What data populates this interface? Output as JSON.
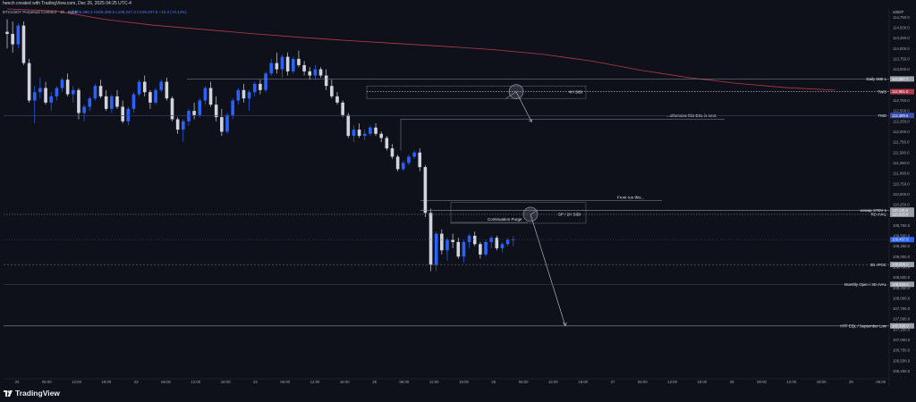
{
  "header": {
    "created_text": "heech created with TradingView.com, Dec 26, 2025 04:25 UTC-4",
    "symbol_text": "BTCUSDT Perpetual Contract · 1h · Bybit",
    "ohlc_text": "O109,396.3  H109,486.5  L109,247.3  C109,407.8  +10.3 (+0.14%)"
  },
  "brand": {
    "name": "TradingView"
  },
  "currency": "USDT",
  "colors": {
    "bg": "#0e1119",
    "up": "#2962ff",
    "down": "#d1d4dc",
    "vwap": "#b73a4a",
    "line": "#8a8f9a"
  },
  "price_axis": {
    "ticks": [
      "114,750.0",
      "114,500.0",
      "114,250.0",
      "114,000.0",
      "113,750.0",
      "113,500.0",
      "113,250.0",
      "113,000.0",
      "112,750.0",
      "112,500.0",
      "112,250.0",
      "112,000.0",
      "111,750.0",
      "111,500.0",
      "111,250.0",
      "111,000.0",
      "110,750.0",
      "110,500.0",
      "110,250.0",
      "110,000.0",
      "109,750.0",
      "109,500.0",
      "109,250.0",
      "109,000.0",
      "108,750.0",
      "108,500.0",
      "108,250.0",
      "108,000.0",
      "107,750.0",
      "107,500.0",
      "107,250.0",
      "107,000.0",
      "106,750.0",
      "106,500.0",
      "106,250.0"
    ]
  },
  "time_axis": {
    "ticks": [
      "22",
      "06:00",
      "12:00",
      "18:00",
      "23",
      "06:00",
      "12:00",
      "18:00",
      "24",
      "06:00",
      "12:00",
      "18:00",
      "25",
      "06:00",
      "12:00",
      "18:00",
      "26",
      "06:00",
      "12:00",
      "18:00",
      "27",
      "06:00",
      "12:00",
      "18:00",
      "28",
      "06:00",
      "12:00",
      "18:00",
      "29",
      "06:00"
    ]
  },
  "levels": [
    {
      "label": "Daily SIBI L",
      "price": "113,267.7"
    },
    {
      "label": "TWO",
      "price": "112,961.0"
    },
    {
      "label": "TMO",
      "price": "112,389.6"
    },
    {
      "label": "wvwap STDV 1",
      "price": "110,115.0"
    },
    {
      "label": "RD cVAL",
      "price": "110,015.0"
    },
    {
      "label": "",
      "price": "109,407.8"
    },
    {
      "label": "3D cPOC",
      "price": "108,808.0"
    },
    {
      "label": "Monthly Open / 3D cVAL",
      "price": "108,333.0"
    },
    {
      "label": "HTF EQL / September Low",
      "price": "107,335.0"
    }
  ],
  "annotations": [
    {
      "text": "4H SIBI"
    },
    {
      "text": "...otherwise this BSL is next."
    },
    {
      "text": "Front run this..."
    },
    {
      "text": "SP / 2H SIBI"
    },
    {
      "text": "Continuation Purge"
    }
  ],
  "chart_data": {
    "type": "candlestick",
    "ylim": [
      106150,
      114950
    ],
    "candles": [
      [
        114400,
        114700,
        114000,
        114350
      ],
      [
        114350,
        114650,
        113900,
        114100
      ],
      [
        114100,
        114600,
        114000,
        114550
      ],
      [
        114550,
        114650,
        113600,
        113650
      ],
      [
        113650,
        113750,
        112700,
        112750
      ],
      [
        112750,
        113100,
        112200,
        112950
      ],
      [
        112950,
        113300,
        112800,
        113050
      ],
      [
        113050,
        113200,
        112650,
        112700
      ],
      [
        112700,
        112950,
        112500,
        112850
      ],
      [
        112850,
        113100,
        112750,
        113050
      ],
      [
        113050,
        113300,
        112950,
        113250
      ],
      [
        113250,
        113400,
        112850,
        112900
      ],
      [
        112900,
        113100,
        112700,
        113000
      ],
      [
        113000,
        113050,
        112300,
        112450
      ],
      [
        112450,
        112650,
        112250,
        112600
      ],
      [
        112600,
        112850,
        112500,
        112800
      ],
      [
        112800,
        113150,
        112750,
        113100
      ],
      [
        113100,
        113250,
        112800,
        112850
      ],
      [
        112850,
        113000,
        112500,
        112550
      ],
      [
        112550,
        112900,
        112450,
        112850
      ],
      [
        112850,
        113000,
        112550,
        112600
      ],
      [
        112600,
        112750,
        112200,
        112250
      ],
      [
        112250,
        112600,
        112150,
        112550
      ],
      [
        112550,
        112950,
        112450,
        112900
      ],
      [
        112900,
        113250,
        112850,
        113200
      ],
      [
        113200,
        113350,
        112850,
        112950
      ],
      [
        112950,
        113000,
        112550,
        112700
      ],
      [
        112700,
        113050,
        112650,
        113000
      ],
      [
        113000,
        113250,
        112950,
        113200
      ],
      [
        113200,
        113300,
        112750,
        112800
      ],
      [
        112800,
        112850,
        112250,
        112300
      ],
      [
        112300,
        112350,
        111950,
        112050
      ],
      [
        112050,
        112300,
        111750,
        112250
      ],
      [
        112250,
        112550,
        112150,
        112500
      ],
      [
        112500,
        112700,
        112300,
        112400
      ],
      [
        112400,
        112800,
        112350,
        112750
      ],
      [
        112750,
        113100,
        112650,
        113050
      ],
      [
        113050,
        113200,
        112600,
        112650
      ],
      [
        112650,
        112850,
        112250,
        112350
      ],
      [
        112350,
        112550,
        111900,
        112000
      ],
      [
        112000,
        112450,
        111950,
        112400
      ],
      [
        112400,
        112800,
        112300,
        112750
      ],
      [
        112750,
        113050,
        112650,
        113000
      ],
      [
        113000,
        113150,
        112700,
        112800
      ],
      [
        112800,
        113000,
        112500,
        112950
      ],
      [
        112950,
        113200,
        112850,
        113150
      ],
      [
        113150,
        113250,
        112900,
        113000
      ],
      [
        113000,
        113450,
        112950,
        113400
      ],
      [
        113400,
        113750,
        113350,
        113650
      ],
      [
        113650,
        113900,
        113400,
        113500
      ],
      [
        113500,
        113850,
        113300,
        113800
      ],
      [
        113800,
        113900,
        113350,
        113450
      ],
      [
        113450,
        113800,
        113400,
        113750
      ],
      [
        113750,
        113950,
        113550,
        113600
      ],
      [
        113600,
        113700,
        113350,
        113450
      ],
      [
        113450,
        113550,
        113250,
        113350
      ],
      [
        113350,
        113600,
        113250,
        113500
      ],
      [
        113500,
        113550,
        113300,
        113350
      ],
      [
        113350,
        113500,
        113000,
        113100
      ],
      [
        113100,
        113250,
        112800,
        112850
      ],
      [
        112850,
        112950,
        112650,
        112700
      ],
      [
        112700,
        112750,
        112350,
        112400
      ],
      [
        112400,
        112450,
        111850,
        111900
      ],
      [
        111900,
        112150,
        111750,
        112050
      ],
      [
        112050,
        112200,
        111850,
        111900
      ],
      [
        111900,
        112050,
        111800,
        111950
      ],
      [
        111950,
        112150,
        111900,
        112100
      ],
      [
        112100,
        112200,
        111900,
        111950
      ],
      [
        111950,
        112000,
        111750,
        111850
      ],
      [
        111850,
        111900,
        111550,
        111600
      ],
      [
        111600,
        111700,
        111350,
        111400
      ],
      [
        111400,
        111450,
        111050,
        111100
      ],
      [
        111100,
        111300,
        111050,
        111250
      ],
      [
        111250,
        111450,
        111200,
        111400
      ],
      [
        111400,
        111550,
        111350,
        111500
      ],
      [
        111500,
        111600,
        111050,
        111150
      ],
      [
        111150,
        111200,
        109950,
        110050
      ],
      [
        110050,
        110150,
        108650,
        108800
      ],
      [
        108800,
        109600,
        108650,
        109550
      ],
      [
        109550,
        109650,
        109050,
        109150
      ],
      [
        109150,
        109450,
        108900,
        109400
      ],
      [
        109400,
        109550,
        109200,
        109350
      ],
      [
        109350,
        109450,
        108950,
        109000
      ],
      [
        109000,
        109400,
        108850,
        109350
      ],
      [
        109350,
        109550,
        109200,
        109500
      ],
      [
        109500,
        109600,
        109250,
        109300
      ],
      [
        109300,
        109350,
        108950,
        109050
      ],
      [
        109050,
        109400,
        109000,
        109350
      ],
      [
        109350,
        109500,
        109200,
        109450
      ],
      [
        109450,
        109500,
        109150,
        109200
      ],
      [
        109200,
        109350,
        109100,
        109300
      ],
      [
        109300,
        109450,
        109250,
        109400
      ],
      [
        109396,
        109486,
        109247,
        109408
      ]
    ],
    "vwap": [
      [
        0,
        114950
      ],
      [
        10,
        114900
      ],
      [
        20,
        114700
      ],
      [
        30,
        114560
      ],
      [
        40,
        114460
      ],
      [
        50,
        114360
      ],
      [
        60,
        114270
      ],
      [
        70,
        114190
      ],
      [
        80,
        114120
      ],
      [
        90,
        114050
      ],
      [
        100,
        113970
      ],
      [
        110,
        113860
      ],
      [
        120,
        113700
      ],
      [
        130,
        113480
      ],
      [
        140,
        113300
      ],
      [
        150,
        113160
      ],
      [
        160,
        113060
      ],
      [
        170,
        113000
      ]
    ]
  }
}
